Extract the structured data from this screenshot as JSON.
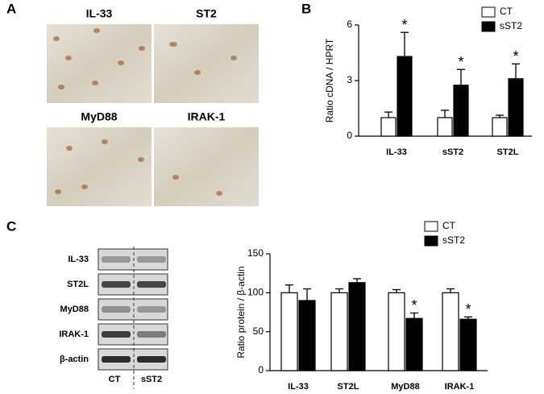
{
  "panels": {
    "a": {
      "label": "A",
      "images": [
        "IL-33",
        "ST2",
        "MyD88",
        "IRAK-1"
      ]
    },
    "b": {
      "label": "B"
    },
    "c": {
      "label": "C",
      "blot_rows": [
        "IL-33",
        "ST2L",
        "MyD88",
        "IRAK-1",
        "β-actin"
      ],
      "blot_columns": [
        "CT",
        "sST2"
      ]
    }
  },
  "chart_data": [
    {
      "type": "bar",
      "y_label": "Ratio cDNA / HPRT",
      "categories": [
        "IL-33",
        "sST2",
        "ST2L"
      ],
      "series": [
        {
          "name": "CT",
          "color": "#ffffff",
          "values": [
            1.0,
            1.0,
            1.0
          ],
          "errors": [
            0.3,
            0.4,
            0.13
          ]
        },
        {
          "name": "sST2",
          "color": "#000000",
          "values": [
            4.3,
            2.75,
            3.1
          ],
          "errors": [
            1.3,
            0.85,
            0.8
          ],
          "significance": [
            "*",
            "*",
            "*"
          ]
        }
      ],
      "ylim": [
        0,
        6
      ],
      "yticks": [
        0,
        3,
        6
      ]
    },
    {
      "type": "bar",
      "y_label": "Ratio protein / β-actin",
      "categories": [
        "IL-33",
        "ST2L",
        "MyD88",
        "IRAK-1"
      ],
      "series": [
        {
          "name": "CT",
          "color": "#ffffff",
          "values": [
            100,
            100,
            100,
            100
          ],
          "errors": [
            10,
            5,
            4,
            5
          ]
        },
        {
          "name": "sST2",
          "color": "#000000",
          "values": [
            90,
            113,
            67,
            66
          ],
          "errors": [
            15,
            5,
            7,
            3
          ],
          "significance": [
            null,
            null,
            "*",
            "*"
          ]
        }
      ],
      "ylim": [
        0,
        150
      ],
      "yticks": [
        0,
        50,
        100,
        150
      ]
    }
  ]
}
